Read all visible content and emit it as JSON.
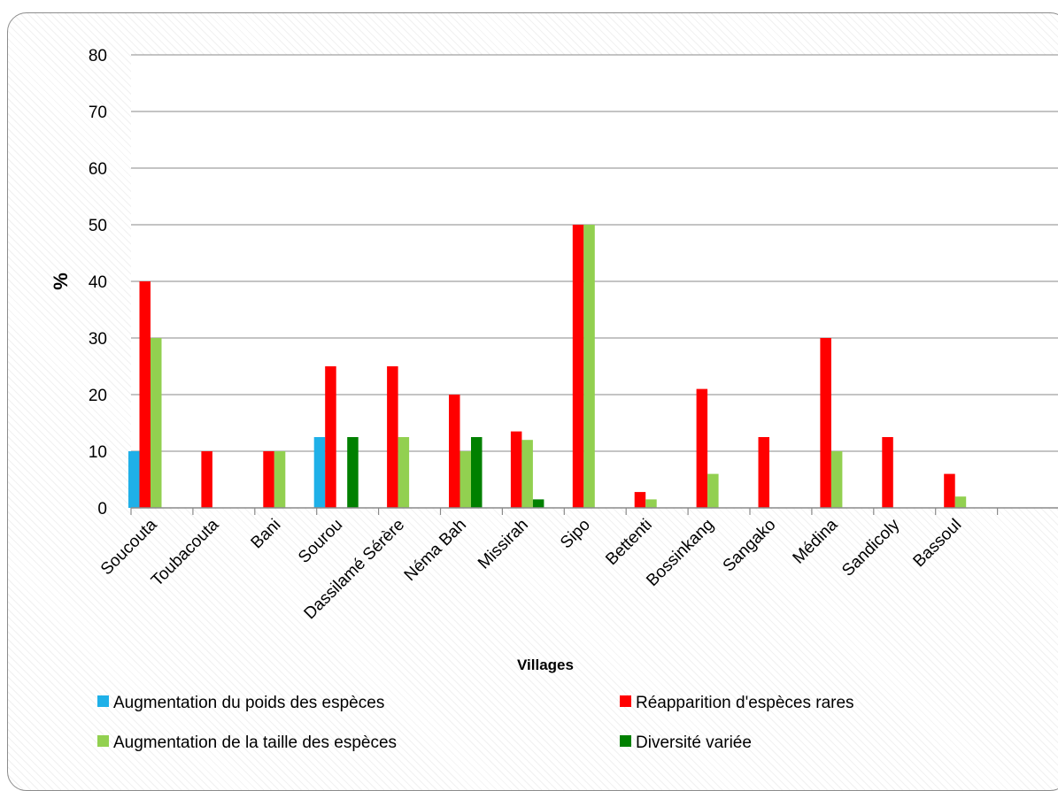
{
  "chart_data": {
    "type": "bar",
    "title": "",
    "xlabel": "Villages",
    "ylabel": "%",
    "ylim": [
      0,
      80
    ],
    "yticks": [
      0,
      10,
      20,
      30,
      40,
      50,
      60,
      70,
      80
    ],
    "grid": true,
    "legend_position": "bottom",
    "categories": [
      "Soucouta",
      "Toubacouta",
      "Bani",
      "Sourou",
      "Dassilamé Sérère",
      "Néma Bah",
      "Missirah",
      "Sipo",
      "Bettenti",
      "Bossinkang",
      "Sangako",
      "Médina",
      "Sandicoly",
      "Bassoul"
    ],
    "series": [
      {
        "name": "Augmentation du poids des espèces",
        "color": "#1fb0e8",
        "values": [
          10,
          0,
          0,
          12.5,
          0,
          0,
          0,
          0,
          0,
          0,
          0,
          0,
          0,
          0
        ]
      },
      {
        "name": "Réapparition d'espèces rares",
        "color": "#ff0000",
        "values": [
          40,
          10,
          10,
          25,
          25,
          20,
          13.5,
          50,
          2.8,
          21,
          12.5,
          30,
          12.5,
          6
        ]
      },
      {
        "name": "Augmentation de la taille des espèces",
        "color": "#92d050",
        "values": [
          30,
          0,
          10,
          0,
          12.5,
          10,
          12,
          50,
          1.5,
          6,
          0,
          10,
          0,
          2
        ]
      },
      {
        "name": "Diversité variée",
        "color": "#008000",
        "values": [
          0,
          0,
          0,
          12.5,
          0,
          12.5,
          1.5,
          0,
          0,
          0,
          0,
          0,
          0,
          0
        ]
      }
    ]
  }
}
